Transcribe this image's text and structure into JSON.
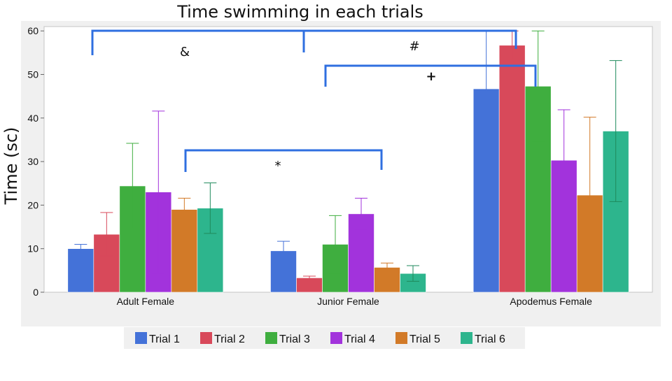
{
  "chart_data": {
    "type": "bar",
    "title": "Time swimming in each trials",
    "ylabel": "Time  (sc)",
    "xlabel": "",
    "ylim": [
      0,
      61
    ],
    "yticks": [
      0,
      10,
      20,
      30,
      40,
      50,
      60
    ],
    "grid": false,
    "legend_position": "bottom",
    "categories": [
      "Adult Female",
      "Junior Female",
      "Apodemus Female"
    ],
    "series": [
      {
        "name": "Trial 1",
        "color": "#4472d8",
        "values": [
          10,
          9.5,
          46.7
        ],
        "err_low": [
          9,
          7.2,
          33.3
        ],
        "err_high": [
          11,
          11.7,
          60
        ]
      },
      {
        "name": "Trial 2",
        "color": "#d8495a",
        "values": [
          13.3,
          3.3,
          56.7
        ],
        "err_low": [
          8.3,
          3,
          53.3
        ],
        "err_high": [
          18.3,
          3.7,
          60
        ]
      },
      {
        "name": "Trial 3",
        "color": "#3fae3f",
        "values": [
          24.4,
          11,
          47.3
        ],
        "err_low": [
          14.6,
          4.4,
          34.7
        ],
        "err_high": [
          34.2,
          17.6,
          60
        ]
      },
      {
        "name": "Trial 4",
        "color": "#a233dc",
        "values": [
          23,
          18,
          30.3
        ],
        "err_low": [
          4.4,
          14.4,
          18.7
        ],
        "err_high": [
          41.6,
          21.6,
          41.9
        ]
      },
      {
        "name": "Trial 5",
        "color": "#d27a28",
        "values": [
          19,
          5.7,
          22.3
        ],
        "err_low": [
          16.7,
          4.7,
          4.4
        ],
        "err_high": [
          21.6,
          6.7,
          40.2
        ]
      },
      {
        "name": "Trial 6",
        "color": "#2db58d",
        "values": [
          19.3,
          4.3,
          37
        ],
        "err_low": [
          13.5,
          2.5,
          20.8
        ],
        "err_high": [
          25.1,
          6.1,
          53.2
        ]
      }
    ],
    "annotations": [
      {
        "symbol": "&"
      },
      {
        "symbol": "#"
      },
      {
        "symbol": "+"
      },
      {
        "symbol": "*"
      }
    ]
  }
}
